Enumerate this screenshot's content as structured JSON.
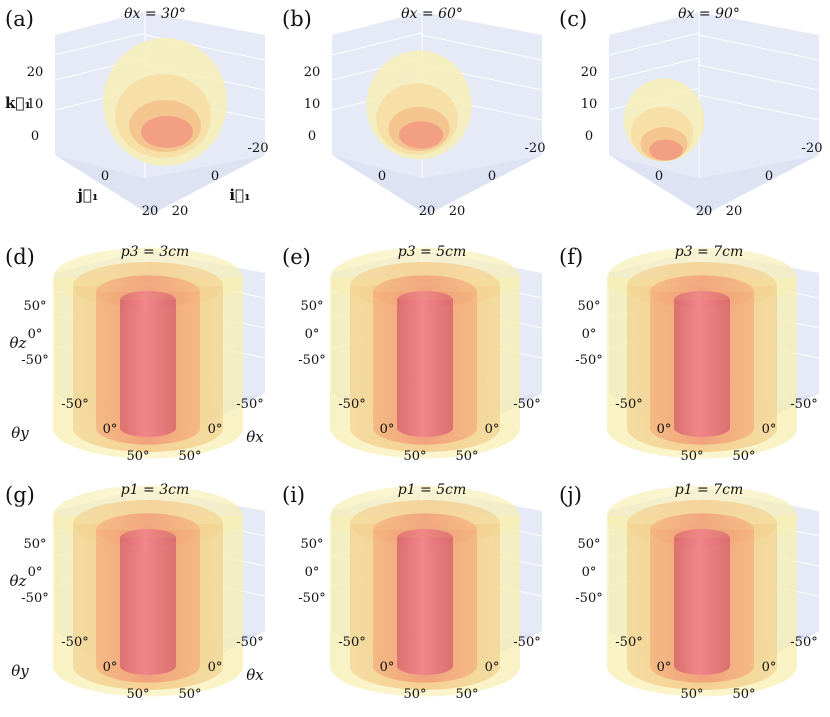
{
  "figure": {
    "panels": [
      {
        "label": "(a)",
        "title": "θx = 30°",
        "kind": "ellipsoid",
        "z_ticks": [
          "20",
          "10",
          "0"
        ],
        "x_ticks": [
          "-20",
          "0",
          "20"
        ],
        "y_ticks": [
          "0",
          "20"
        ],
        "z_label": "k⃗₁",
        "y_label": "j⃗₁",
        "x_label": "i⃗₁"
      },
      {
        "label": "(b)",
        "title": "θx = 60°",
        "kind": "ellipsoid",
        "z_ticks": [
          "20",
          "10",
          "0"
        ],
        "x_ticks": [
          "-20",
          "0",
          "20"
        ],
        "y_ticks": [
          "0",
          "20"
        ],
        "z_label": "",
        "y_label": "",
        "x_label": ""
      },
      {
        "label": "(c)",
        "title": "θx = 90°",
        "kind": "ellipsoid",
        "z_ticks": [
          "20",
          "10",
          "0"
        ],
        "x_ticks": [
          "-20",
          "0",
          "20"
        ],
        "y_ticks": [
          "0",
          "20"
        ],
        "z_label": "",
        "y_label": "",
        "x_label": ""
      },
      {
        "label": "(d)",
        "title": "p3 = 3cm",
        "kind": "cylinder",
        "z_ticks": [
          "50°",
          "0°",
          "-50°"
        ],
        "x_ticks": [
          "-50°",
          "0°",
          "50°"
        ],
        "y_ticks": [
          "-50°",
          "0°",
          "50°"
        ],
        "z_label": "θz",
        "y_label": "θy",
        "x_label": "θx"
      },
      {
        "label": "(e)",
        "title": "p3 = 5cm",
        "kind": "cylinder",
        "z_ticks": [
          "50°",
          "0°",
          "-50°"
        ],
        "x_ticks": [
          "-50°",
          "0°",
          "50°"
        ],
        "y_ticks": [
          "-50°",
          "0°",
          "50°"
        ],
        "z_label": "",
        "y_label": "",
        "x_label": ""
      },
      {
        "label": "(f)",
        "title": "p3 = 7cm",
        "kind": "cylinder",
        "z_ticks": [
          "50°",
          "0°",
          "-50°"
        ],
        "x_ticks": [
          "-50°",
          "0°",
          "50°"
        ],
        "y_ticks": [
          "-50°",
          "0°",
          "50°"
        ],
        "z_label": "",
        "y_label": "",
        "x_label": ""
      },
      {
        "label": "(g)",
        "title": "p1 = 3cm",
        "kind": "cylinder",
        "z_ticks": [
          "50°",
          "0°",
          "-50°"
        ],
        "x_ticks": [
          "-50°",
          "0°",
          "50°"
        ],
        "y_ticks": [
          "-50°",
          "0°",
          "50°"
        ],
        "z_label": "θz",
        "y_label": "θy",
        "x_label": "θx"
      },
      {
        "label": "(i)",
        "title": "p1 = 5cm",
        "kind": "cylinder",
        "z_ticks": [
          "50°",
          "0°",
          "-50°"
        ],
        "x_ticks": [
          "-50°",
          "0°",
          "50°"
        ],
        "y_ticks": [
          "-50°",
          "0°",
          "50°"
        ],
        "z_label": "",
        "y_label": "",
        "x_label": ""
      },
      {
        "label": "(j)",
        "title": "p1 = 7cm",
        "kind": "cylinder",
        "z_ticks": [
          "50°",
          "0°",
          "-50°"
        ],
        "x_ticks": [
          "-50°",
          "0°",
          "50°"
        ],
        "y_ticks": [
          "-50°",
          "0°",
          "50°"
        ],
        "z_label": "",
        "y_label": "",
        "x_label": ""
      }
    ],
    "colors": {
      "pane": "#e5eaf6",
      "outer": "#f7eeb0",
      "mid": "#f5c98a",
      "inner": "#f09a78",
      "core": "#e0707a"
    }
  }
}
